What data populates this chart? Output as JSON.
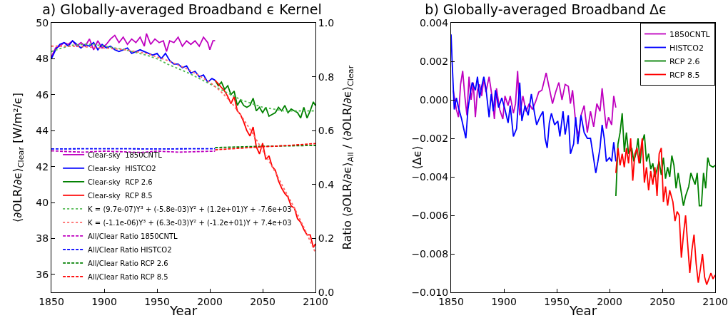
{
  "chart_data": [
    {
      "type": "line",
      "title": "a) Globally-averaged Broadband ϵ Kernel",
      "xlabel": "Year",
      "ylabel": "⟨∂OLR/∂ϵ⟩$_{Clear}$ [W/m²/ϵ]",
      "y2label": "Ratio ⟨∂OLR/∂ϵ⟩$_{All}$ / ⟨∂OLR/∂ϵ⟩$_{Clear}$",
      "xlim": [
        1850,
        2100
      ],
      "xticks": [
        1850,
        1900,
        1950,
        2000,
        2050,
        2100
      ],
      "ylim": [
        35,
        50
      ],
      "yticks": [
        36,
        38,
        40,
        42,
        44,
        46,
        48,
        50
      ],
      "y2lim": [
        0,
        1
      ],
      "y2ticks": [
        {
          "value": 0,
          "label": "0.0"
        },
        0.2,
        0.4,
        0.6,
        0.8,
        {
          "value": 1,
          "label": "1.0"
        }
      ],
      "grid": false,
      "legend": "bottom left",
      "marker": "none",
      "series": [
        {
          "name": "Clear-sky  1850CNTL",
          "color": "#bf00bf",
          "line_style": "solid",
          "x": [
            1850,
            1854,
            1858,
            1862,
            1866,
            1870,
            1874,
            1878,
            1882,
            1886,
            1890,
            1894,
            1898,
            1902,
            1906,
            1910,
            1914,
            1918,
            1922,
            1926,
            1930,
            1934,
            1938,
            1940,
            1944,
            1948,
            1952,
            1956,
            1959,
            1962,
            1966,
            1970,
            1974,
            1978,
            1982,
            1986,
            1990,
            1994,
            1998,
            2000,
            2003,
            2005
          ],
          "values": [
            48.1,
            48.6,
            48.7,
            48.9,
            48.8,
            49.0,
            48.7,
            48.9,
            48.7,
            49.1,
            48.5,
            49.0,
            48.6,
            48.8,
            49.1,
            49.3,
            48.9,
            49.2,
            48.8,
            49.1,
            48.9,
            49.2,
            48.7,
            49.4,
            48.8,
            49.1,
            48.9,
            49.0,
            48.4,
            49.0,
            48.9,
            49.2,
            48.7,
            49.0,
            48.8,
            49.0,
            48.7,
            49.2,
            48.9,
            48.5,
            49.0,
            49.0
          ]
        },
        {
          "name": "Clear-sky  HISTCO2",
          "color": "#0000ff",
          "line_style": "solid",
          "x": [
            1850,
            1854,
            1858,
            1862,
            1866,
            1870,
            1874,
            1878,
            1882,
            1886,
            1890,
            1894,
            1898,
            1902,
            1906,
            1910,
            1914,
            1918,
            1922,
            1926,
            1930,
            1934,
            1938,
            1942,
            1946,
            1950,
            1954,
            1958,
            1962,
            1966,
            1970,
            1974,
            1978,
            1982,
            1986,
            1990,
            1994,
            1998,
            2002,
            2005
          ],
          "values": [
            48.0,
            48.5,
            48.8,
            48.9,
            48.7,
            49.0,
            48.8,
            48.6,
            48.8,
            48.7,
            48.9,
            48.5,
            48.8,
            48.6,
            48.7,
            48.5,
            48.4,
            48.5,
            48.6,
            48.3,
            48.4,
            48.5,
            48.4,
            48.3,
            48.2,
            48.3,
            48.0,
            48.3,
            47.9,
            47.7,
            47.7,
            47.5,
            47.6,
            47.2,
            47.3,
            47.0,
            47.1,
            46.7,
            46.9,
            46.8
          ]
        },
        {
          "name": "Clear-sky  RCP 2.6",
          "color": "#008000",
          "line_style": "solid",
          "x": [
            2005,
            2008,
            2011,
            2014,
            2017,
            2020,
            2023,
            2026,
            2029,
            2032,
            2035,
            2038,
            2041,
            2044,
            2047,
            2050,
            2053,
            2056,
            2059,
            2062,
            2065,
            2068,
            2071,
            2074,
            2077,
            2080,
            2083,
            2086,
            2089,
            2092,
            2095,
            2098,
            2100
          ],
          "values": [
            46.8,
            46.5,
            46.7,
            46.3,
            46.5,
            46.0,
            46.2,
            45.4,
            45.7,
            45.4,
            45.3,
            45.4,
            45.8,
            45.1,
            45.3,
            45.0,
            45.3,
            44.8,
            44.9,
            45.0,
            45.3,
            45.1,
            45.4,
            45.0,
            45.2,
            45.1,
            45.0,
            44.7,
            45.3,
            44.7,
            45.1,
            45.6,
            45.4
          ]
        },
        {
          "name": "Clear-sky  RCP 8.5",
          "color": "#ff0000",
          "line_style": "solid",
          "x": [
            2005,
            2008,
            2011,
            2014,
            2017,
            2020,
            2023,
            2026,
            2029,
            2032,
            2035,
            2038,
            2041,
            2044,
            2047,
            2050,
            2053,
            2056,
            2059,
            2062,
            2065,
            2068,
            2071,
            2074,
            2077,
            2080,
            2083,
            2086,
            2089,
            2092,
            2095,
            2098,
            2100
          ],
          "values": [
            46.8,
            46.6,
            46.4,
            46.2,
            45.9,
            45.5,
            45.9,
            45.1,
            44.9,
            44.5,
            44.0,
            43.7,
            44.2,
            43.1,
            42.7,
            43.3,
            42.4,
            42.6,
            42.0,
            41.8,
            41.2,
            40.8,
            40.5,
            40.3,
            39.8,
            39.7,
            39.1,
            38.9,
            38.5,
            38.2,
            38.2,
            37.5,
            37.7
          ]
        },
        {
          "name": "K = (9.7e-07)Y³ + (-5.8e-03)Y² + (1.2e+01)Y + -7.6e+03",
          "color": "#55bb55",
          "line_style": "dotted",
          "x": [
            1850,
            1860,
            1870,
            1880,
            1890,
            1900,
            1910,
            1920,
            1930,
            1940,
            1950,
            1960,
            1970,
            1980,
            1990,
            2000,
            2010,
            2020,
            2030,
            2040,
            2050,
            2060,
            2070,
            2080,
            2090,
            2100
          ],
          "values": [
            48.4,
            48.6,
            48.75,
            48.8,
            48.8,
            48.7,
            48.6,
            48.5,
            48.35,
            48.2,
            48.0,
            47.7,
            47.45,
            47.2,
            46.9,
            46.6,
            46.3,
            46.0,
            45.7,
            45.5,
            45.3,
            45.2,
            45.1,
            45.1,
            45.1,
            45.1
          ]
        },
        {
          "name": "K = (-1.1e-06)Y³ + (6.3e-03)Y² + (-1.2e+01)Y + 7.4e+03",
          "color": "#ff6666",
          "line_style": "dotted",
          "x": [
            1850,
            1870,
            1900,
            1920,
            1940,
            1960,
            1980,
            2000,
            2010,
            2020,
            2030,
            2040,
            2050,
            2060,
            2070,
            2080,
            2090,
            2100
          ],
          "values": [
            48.7,
            48.7,
            48.6,
            48.5,
            48.3,
            47.9,
            47.4,
            46.7,
            46.2,
            45.6,
            44.8,
            43.9,
            42.9,
            41.9,
            40.8,
            39.7,
            38.5,
            37.2
          ]
        },
        {
          "name": "All/Clear Ratio 1850CNTL",
          "color": "#bf00bf",
          "line_style": "dashed",
          "axis": "y2",
          "x": [
            1850,
            1880,
            1900,
            1935,
            1950,
            1970,
            2005
          ],
          "values": [
            0.525,
            0.52,
            0.524,
            0.519,
            0.524,
            0.52,
            0.524
          ]
        },
        {
          "name": "All/Clear Ratio HISTCO2",
          "color": "#0000ff",
          "line_style": "dashed",
          "axis": "y2",
          "x": [
            1850,
            1900,
            1950,
            2005
          ],
          "values": [
            0.532,
            0.533,
            0.532,
            0.533
          ]
        },
        {
          "name": "All/Clear Ratio RCP 2.6",
          "color": "#008000",
          "line_style": "dashed",
          "axis": "y2",
          "x": [
            2005,
            2050,
            2100
          ],
          "values": [
            0.537,
            0.542,
            0.545
          ]
        },
        {
          "name": "All/Clear Ratio RCP 8.5",
          "color": "#ff0000",
          "line_style": "dashed",
          "axis": "y2",
          "x": [
            2005,
            2050,
            2075,
            2100
          ],
          "values": [
            0.529,
            0.54,
            0.545,
            0.552
          ]
        }
      ]
    },
    {
      "type": "line",
      "title": "b) Globally-averaged Broadband Δϵ",
      "xlabel": "Year",
      "ylabel": "⟨Δϵ⟩",
      "xlim": [
        1850,
        2100
      ],
      "xticks": [
        1850,
        1900,
        1950,
        2000,
        2050,
        2100
      ],
      "ylim": [
        -0.01,
        0.004
      ],
      "yticks": [
        {
          "value": -0.01,
          "label": "−0.010"
        },
        {
          "value": -0.008,
          "label": "−0.008"
        },
        {
          "value": -0.006,
          "label": "−0.006"
        },
        {
          "value": -0.004,
          "label": "−0.004"
        },
        {
          "value": -0.002,
          "label": "−0.002"
        },
        {
          "value": 0,
          "label": "0.000"
        },
        {
          "value": 0.002,
          "label": "0.002"
        },
        {
          "value": 0.004,
          "label": "0.004"
        }
      ],
      "grid": false,
      "legend": "top right",
      "marker": "none",
      "line_style": "solid",
      "series": [
        {
          "name": "1850CNTL",
          "color": "#bf00bf",
          "x": [
            1852,
            1855,
            1857,
            1859,
            1861,
            1863,
            1865,
            1867,
            1869,
            1871,
            1873,
            1875,
            1877,
            1879,
            1881,
            1883,
            1886,
            1889,
            1891,
            1893,
            1896,
            1899,
            1901,
            1904,
            1906,
            1909,
            1911,
            1913,
            1915,
            1918,
            1921,
            1924,
            1927,
            1930,
            1933,
            1936,
            1940,
            1943,
            1946,
            1949,
            1952,
            1955,
            1958,
            1961,
            1963,
            1965,
            1968,
            1971,
            1973,
            1976,
            1979,
            1982,
            1985,
            1988,
            1991,
            1993,
            1995,
            1997,
            1999,
            2002,
            2004,
            2006
          ],
          "values": [
            0.0005,
            -0.0005,
            -0.0009,
            0.0008,
            0.0015,
            0.0002,
            -0.0008,
            0.0012,
            0.0,
            0.0009,
            -0.0009,
            0.0005,
            0.0008,
            0.0002,
            0.0011,
            0.0004,
            0.0012,
            0.0001,
            -0.001,
            0.0006,
            -0.0005,
            -0.001,
            0.0002,
            -0.0003,
            0.0002,
            -0.0007,
            -0.0002,
            0.0015,
            -0.0008,
            0.0002,
            -0.0006,
            -0.0002,
            -0.0005,
            -0.0001,
            0.0004,
            0.0005,
            0.0014,
            0.0006,
            -0.0002,
            0.0004,
            0.0009,
            0.0,
            0.0008,
            0.0007,
            -0.0002,
            0.0005,
            -0.0012,
            -0.0019,
            -0.0008,
            -0.0003,
            -0.0017,
            -0.0006,
            -0.0014,
            -0.0002,
            -0.0006,
            0.0006,
            -0.0005,
            -0.0015,
            -0.0009,
            -0.0013,
            0.0002,
            -0.0004
          ]
        },
        {
          "name": "HISTCO2",
          "color": "#0000ff",
          "x": [
            1850,
            1851,
            1853,
            1855,
            1857,
            1860,
            1862,
            1864,
            1866,
            1868,
            1870,
            1873,
            1875,
            1877,
            1879,
            1881,
            1883,
            1886,
            1888,
            1890,
            1892,
            1895,
            1898,
            1901,
            1904,
            1906,
            1909,
            1912,
            1915,
            1917,
            1920,
            1923,
            1926,
            1929,
            1931,
            1934,
            1937,
            1939,
            1941,
            1943,
            1945,
            1948,
            1951,
            1953,
            1956,
            1958,
            1961,
            1963,
            1966,
            1968,
            1970,
            1973,
            1976,
            1979,
            1982,
            1984,
            1987,
            1989,
            1991,
            1993,
            1995,
            1997,
            2000,
            2002,
            2004,
            2006
          ],
          "values": [
            0.0034,
            0.002,
            -0.0005,
            0.0001,
            -0.0004,
            -0.001,
            -0.0015,
            -0.002,
            -0.0005,
            0.0003,
            0.0009,
            0.0005,
            0.0012,
            0.0001,
            0.0007,
            0.0012,
            0.0006,
            -0.0009,
            0.0003,
            -0.0006,
            0.0005,
            -0.0004,
            0.0001,
            -0.0005,
            -0.0012,
            -0.0003,
            -0.0019,
            -0.0015,
            0.0009,
            -0.0011,
            -0.0003,
            -0.0008,
            0.0003,
            -0.0007,
            -0.0013,
            -0.0009,
            -0.0006,
            -0.002,
            -0.0025,
            -0.0012,
            -0.0007,
            -0.0013,
            -0.0011,
            -0.0019,
            -0.0006,
            -0.0018,
            -0.0008,
            -0.0028,
            -0.0023,
            -0.0009,
            -0.0023,
            -0.0008,
            -0.0017,
            -0.002,
            -0.002,
            -0.0027,
            -0.0038,
            -0.0032,
            -0.0025,
            -0.0013,
            -0.002,
            -0.0032,
            -0.003,
            -0.0032,
            -0.0022,
            -0.0032
          ]
        },
        {
          "name": "RCP 2.6",
          "color": "#008000",
          "x": [
            2006,
            2008,
            2010,
            2012,
            2014,
            2016,
            2018,
            2021,
            2023,
            2025,
            2027,
            2029,
            2031,
            2033,
            2035,
            2037,
            2039,
            2041,
            2043,
            2045,
            2047,
            2049,
            2051,
            2053,
            2055,
            2057,
            2059,
            2061,
            2063,
            2065,
            2067,
            2070,
            2072,
            2075,
            2077,
            2079,
            2081,
            2083,
            2085,
            2087,
            2089,
            2091,
            2093,
            2095,
            2098,
            2100
          ],
          "values": [
            -0.005,
            -0.0023,
            -0.0017,
            -0.0007,
            -0.0027,
            -0.0017,
            -0.0028,
            -0.0025,
            -0.0032,
            -0.0028,
            -0.002,
            -0.0033,
            -0.0022,
            -0.0018,
            -0.0032,
            -0.0028,
            -0.0036,
            -0.0033,
            -0.004,
            -0.0036,
            -0.0032,
            -0.0039,
            -0.003,
            -0.0041,
            -0.0035,
            -0.004,
            -0.0029,
            -0.0034,
            -0.0046,
            -0.0038,
            -0.0045,
            -0.0055,
            -0.005,
            -0.0045,
            -0.0038,
            -0.0041,
            -0.0044,
            -0.0038,
            -0.0055,
            -0.0055,
            -0.0038,
            -0.0046,
            -0.003,
            -0.0034,
            -0.0035,
            -0.0034
          ]
        },
        {
          "name": "RCP 8.5",
          "color": "#ff0000",
          "x": [
            2006,
            2008,
            2010,
            2012,
            2014,
            2016,
            2018,
            2020,
            2022,
            2024,
            2026,
            2028,
            2031,
            2033,
            2035,
            2037,
            2039,
            2041,
            2043,
            2045,
            2047,
            2049,
            2051,
            2053,
            2055,
            2057,
            2060,
            2062,
            2064,
            2066,
            2068,
            2070,
            2072,
            2074,
            2076,
            2078,
            2080,
            2082,
            2084,
            2086,
            2088,
            2090,
            2092,
            2094,
            2096,
            2098,
            2100
          ],
          "values": [
            -0.0038,
            -0.0025,
            -0.0034,
            -0.0028,
            -0.0035,
            -0.0025,
            -0.0033,
            -0.002,
            -0.0042,
            -0.0028,
            -0.0025,
            -0.0033,
            -0.002,
            -0.0043,
            -0.0035,
            -0.0047,
            -0.0037,
            -0.0044,
            -0.0035,
            -0.005,
            -0.0028,
            -0.0025,
            -0.0053,
            -0.0045,
            -0.0055,
            -0.0047,
            -0.0053,
            -0.0063,
            -0.0058,
            -0.006,
            -0.0082,
            -0.007,
            -0.006,
            -0.0075,
            -0.009,
            -0.0078,
            -0.007,
            -0.0085,
            -0.0095,
            -0.0088,
            -0.008,
            -0.0092,
            -0.0096,
            -0.0093,
            -0.009,
            -0.0093,
            -0.0091
          ]
        }
      ]
    }
  ]
}
